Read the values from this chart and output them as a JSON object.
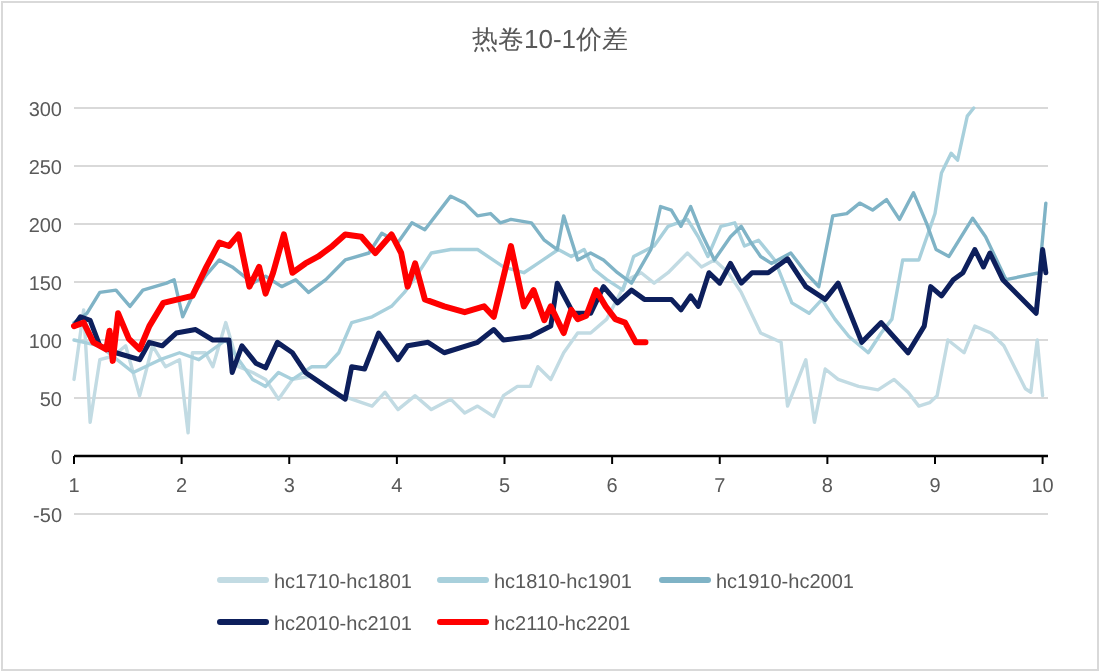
{
  "chart_data": {
    "type": "line",
    "title": "热卷10-1价差",
    "xlim": [
      1,
      10.05
    ],
    "xticks": [
      1,
      2,
      3,
      4,
      5,
      6,
      7,
      8,
      9,
      10
    ],
    "ylim": [
      -50,
      300
    ],
    "yticks": [
      -50,
      0,
      50,
      100,
      150,
      200,
      250,
      300
    ],
    "grid": "y",
    "legend": "bottom",
    "marker": "none",
    "line_style": "solid",
    "series": [
      {
        "name": "hc1710-hc1801",
        "color": "#c2dbe3",
        "x": [
          1,
          1.09,
          1.15,
          1.24,
          1.36,
          1.48,
          1.61,
          1.73,
          1.85,
          1.98,
          2.06,
          2.1,
          2.22,
          2.29,
          2.41,
          2.53,
          2.66,
          2.78,
          2.9,
          3.03,
          3.21,
          3.4,
          3.58,
          3.77,
          3.89,
          4.01,
          4.17,
          4.32,
          4.5,
          4.63,
          4.75,
          4.9,
          4.99,
          5.12,
          5.24,
          5.31,
          5.43,
          5.55,
          5.68,
          5.8,
          5.95,
          6.14,
          6.27,
          6.39,
          6.52,
          6.7,
          6.83,
          6.95,
          7.08,
          7.2,
          7.38,
          7.57,
          7.63,
          7.8,
          7.88,
          7.98,
          8.1,
          8.29,
          8.47,
          8.62,
          8.75,
          8.85,
          8.95,
          9.02,
          9.12,
          9.27,
          9.37,
          9.52,
          9.64,
          9.84,
          9.89,
          9.95,
          10.0
        ],
        "values": [
          66,
          126,
          29,
          83,
          86,
          95,
          52,
          95,
          77,
          83,
          20,
          89,
          89,
          77,
          115,
          77,
          72,
          66,
          49,
          66,
          69,
          55,
          49,
          43,
          55,
          40,
          52,
          40,
          49,
          37,
          43,
          34,
          52,
          60,
          60,
          77,
          66,
          89,
          106,
          106,
          118,
          152,
          158,
          149,
          158,
          175,
          163,
          169,
          158,
          141,
          106,
          98,
          43,
          83,
          29,
          75,
          66,
          60,
          57,
          66,
          55,
          43,
          46,
          52,
          100,
          89,
          112,
          106,
          95,
          58,
          55,
          100,
          52
        ]
      },
      {
        "name": "hc1810-hc1901",
        "color": "#a8d0dc",
        "x": [
          1,
          1.24,
          1.55,
          1.8,
          1.98,
          2.16,
          2.41,
          2.53,
          2.66,
          2.78,
          2.9,
          3.03,
          3.21,
          3.34,
          3.46,
          3.58,
          3.77,
          3.95,
          4.07,
          4.2,
          4.32,
          4.5,
          4.75,
          4.99,
          5.18,
          5.31,
          5.5,
          5.62,
          5.74,
          5.83,
          5.95,
          6.1,
          6.2,
          6.39,
          6.52,
          6.7,
          6.8,
          6.89,
          7.01,
          7.14,
          7.23,
          7.36,
          7.51,
          7.67,
          7.83,
          7.95,
          8.07,
          8.2,
          8.38,
          8.5,
          8.6,
          8.7,
          8.85,
          9.0,
          9.06,
          9.15,
          9.21,
          9.3,
          9.36
        ],
        "values": [
          100,
          95,
          72,
          83,
          89,
          83,
          100,
          83,
          66,
          60,
          72,
          66,
          77,
          77,
          89,
          115,
          120,
          129,
          141,
          158,
          175,
          178,
          178,
          163,
          158,
          166,
          178,
          172,
          178,
          161,
          152,
          143,
          172,
          181,
          198,
          204,
          189,
          172,
          198,
          201,
          181,
          186,
          169,
          132,
          123,
          135,
          118,
          103,
          89,
          106,
          118,
          169,
          169,
          209,
          244,
          261,
          255,
          293,
          300
        ]
      },
      {
        "name": "hc1910-hc2001",
        "color": "#7fb3c6",
        "x": [
          1,
          1.12,
          1.24,
          1.39,
          1.52,
          1.64,
          1.86,
          1.93,
          2.01,
          2.1,
          2.22,
          2.35,
          2.47,
          2.66,
          2.78,
          2.93,
          3.06,
          3.18,
          3.34,
          3.52,
          3.74,
          3.86,
          4.01,
          4.14,
          4.26,
          4.5,
          4.63,
          4.75,
          4.87,
          4.96,
          5.06,
          5.25,
          5.37,
          5.49,
          5.55,
          5.68,
          5.8,
          5.92,
          6.05,
          6.18,
          6.36,
          6.45,
          6.55,
          6.64,
          6.73,
          6.83,
          6.95,
          7.1,
          7.2,
          7.29,
          7.38,
          7.48,
          7.66,
          7.8,
          7.92,
          8.05,
          8.18,
          8.3,
          8.42,
          8.55,
          8.67,
          8.8,
          8.92,
          9.01,
          9.13,
          9.35,
          9.47,
          9.66,
          9.97,
          10.03
        ],
        "values": [
          115,
          123,
          141,
          143,
          129,
          143,
          149,
          152,
          120,
          138,
          155,
          169,
          163,
          149,
          155,
          146,
          152,
          141,
          152,
          169,
          175,
          192,
          184,
          201,
          195,
          224,
          218,
          207,
          209,
          201,
          204,
          201,
          186,
          178,
          207,
          169,
          175,
          169,
          158,
          149,
          178,
          215,
          212,
          198,
          215,
          192,
          169,
          189,
          198,
          184,
          172,
          166,
          175,
          158,
          146,
          207,
          209,
          218,
          212,
          221,
          204,
          227,
          201,
          178,
          172,
          205,
          189,
          152,
          158,
          218
        ]
      },
      {
        "name": "hc2010-hc2101",
        "color": "#0d1f5c",
        "x": [
          1,
          1.06,
          1.15,
          1.24,
          1.39,
          1.61,
          1.7,
          1.82,
          1.95,
          2.13,
          2.29,
          2.44,
          2.47,
          2.56,
          2.69,
          2.78,
          2.89,
          3.03,
          3.15,
          3.34,
          3.52,
          3.58,
          3.7,
          3.83,
          4.01,
          4.1,
          4.29,
          4.44,
          4.75,
          4.9,
          4.99,
          5.24,
          5.43,
          5.49,
          5.64,
          5.8,
          5.92,
          6.05,
          6.18,
          6.3,
          6.55,
          6.64,
          6.73,
          6.8,
          6.9,
          7.0,
          7.1,
          7.2,
          7.3,
          7.45,
          7.63,
          7.8,
          7.98,
          8.1,
          8.32,
          8.5,
          8.75,
          8.9,
          8.96,
          9.06,
          9.17,
          9.26,
          9.37,
          9.45,
          9.51,
          9.63,
          9.94,
          10.0,
          10.03
        ],
        "values": [
          112,
          120,
          117,
          95,
          89,
          83,
          98,
          95,
          106,
          109,
          100,
          100,
          72,
          95,
          80,
          76,
          98,
          89,
          72,
          60,
          49,
          77,
          75,
          106,
          83,
          95,
          98,
          89,
          98,
          109,
          100,
          103,
          112,
          149,
          123,
          123,
          146,
          132,
          143,
          135,
          135,
          126,
          138,
          129,
          158,
          149,
          166,
          149,
          158,
          158,
          170,
          146,
          135,
          149,
          98,
          115,
          89,
          112,
          146,
          138,
          152,
          158,
          178,
          163,
          175,
          152,
          123,
          178,
          158
        ]
      },
      {
        "name": "hc2110-hc2201",
        "color": "#ff0000",
        "x": [
          1,
          1.09,
          1.18,
          1.3,
          1.33,
          1.36,
          1.41,
          1.51,
          1.61,
          1.7,
          1.83,
          2.1,
          2.23,
          2.35,
          2.44,
          2.53,
          2.63,
          2.72,
          2.78,
          2.85,
          2.95,
          3.03,
          3.15,
          3.27,
          3.4,
          3.52,
          3.67,
          3.8,
          3.95,
          4.04,
          4.1,
          4.17,
          4.26,
          4.44,
          4.63,
          4.81,
          4.9,
          5.06,
          5.18,
          5.27,
          5.37,
          5.43,
          5.55,
          5.62,
          5.68,
          5.76,
          5.85,
          5.94,
          6.03,
          6.12,
          6.22,
          6.31
        ],
        "values": [
          112,
          115,
          98,
          92,
          108,
          82,
          123,
          101,
          92,
          112,
          132,
          138,
          163,
          184,
          181,
          191,
          146,
          163,
          140,
          158,
          191,
          158,
          166,
          172,
          181,
          191,
          189,
          175,
          191,
          175,
          146,
          166,
          135,
          129,
          124,
          129,
          120,
          181,
          129,
          143,
          117,
          129,
          106,
          126,
          118,
          121,
          143,
          129,
          118,
          115,
          98,
          98
        ]
      }
    ]
  }
}
